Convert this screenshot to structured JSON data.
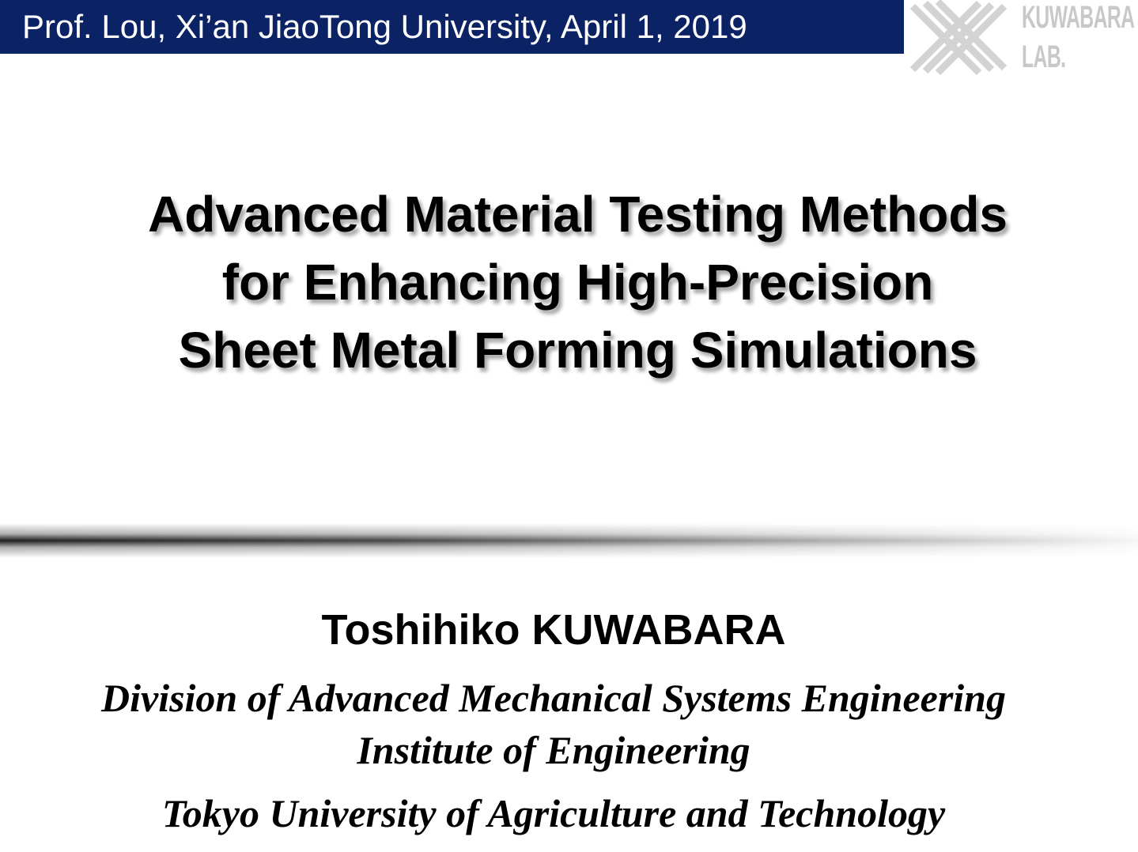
{
  "header": {
    "text": "Prof. Lou,  Xi’an JiaoTong University, April 1, 2019",
    "background_color": "#0b2265"
  },
  "logo": {
    "line1": "KUWABARA",
    "line2": "LAB.",
    "icon": "kuwabara-lab-logo-icon"
  },
  "title": {
    "line1": "Advanced Material Testing Methods",
    "line2": "for Enhancing High-Precision",
    "line3": "Sheet Metal Forming Simulations"
  },
  "author": {
    "name": "Toshihiko KUWABARA",
    "affiliation_1": "Division of Advanced Mechanical Systems Engineering",
    "affiliation_2": "Institute of Engineering",
    "affiliation_3": "Tokyo University of Agriculture and Technology"
  }
}
